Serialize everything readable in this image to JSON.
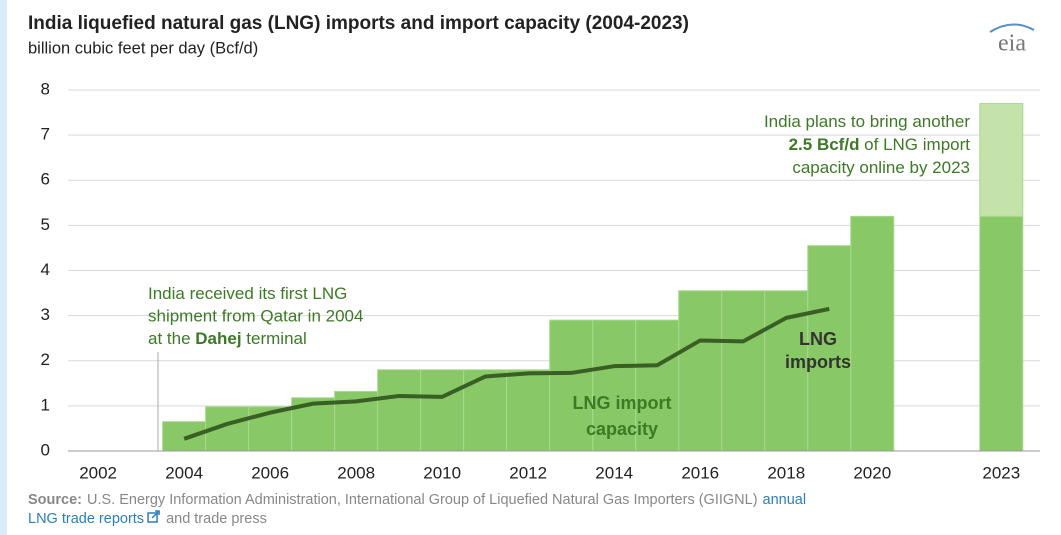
{
  "chart_data": {
    "type": "bar",
    "title": "India liquefied natural gas (LNG) imports and import capacity (2004-2023)",
    "subtitle": "billion cubic feet per day (Bcf/d)",
    "logo": "eia",
    "x": [
      2004,
      2005,
      2006,
      2007,
      2008,
      2009,
      2010,
      2011,
      2012,
      2013,
      2014,
      2015,
      2016,
      2017,
      2018,
      2019,
      2020,
      2023
    ],
    "series": [
      {
        "name": "LNG import capacity",
        "type": "bar",
        "color": "#88c866",
        "values": [
          0.65,
          0.98,
          0.98,
          1.18,
          1.32,
          1.8,
          1.8,
          1.8,
          1.8,
          2.9,
          2.9,
          2.9,
          3.55,
          3.55,
          3.55,
          4.55,
          5.2,
          5.2
        ]
      },
      {
        "name": "planned capacity",
        "type": "bar",
        "color": "#c3e3ab",
        "values": [
          null,
          null,
          null,
          null,
          null,
          null,
          null,
          null,
          null,
          null,
          null,
          null,
          null,
          null,
          null,
          null,
          null,
          2.5
        ]
      },
      {
        "name": "LNG imports",
        "type": "line",
        "color": "#3a5f24",
        "values": [
          0.27,
          0.6,
          0.85,
          1.05,
          1.1,
          1.22,
          1.2,
          1.65,
          1.72,
          1.73,
          1.88,
          1.9,
          2.45,
          2.43,
          2.95,
          3.15,
          null,
          null
        ]
      }
    ],
    "xlim": [
      2001.3,
      2023.9
    ],
    "xticks": [
      2002,
      2004,
      2006,
      2008,
      2010,
      2012,
      2014,
      2016,
      2018,
      2020,
      2023
    ],
    "ylim": [
      0,
      8
    ],
    "yticks": [
      0,
      1,
      2,
      3,
      4,
      5,
      6,
      7,
      8
    ],
    "grid": true,
    "annotations": [
      {
        "lines": [
          [
            {
              "text": "India plans to bring another",
              "bold": false
            }
          ],
          [
            {
              "text": "2.5 Bcf/d",
              "bold": true
            },
            {
              "text": " of LNG import",
              "bold": false
            }
          ],
          [
            {
              "text": "capacity online by 2023",
              "bold": false
            }
          ]
        ]
      },
      {
        "lines": [
          [
            {
              "text": "India received its first LNG",
              "bold": false
            }
          ],
          [
            {
              "text": "shipment from Qatar in 2004",
              "bold": false
            }
          ],
          [
            {
              "text": "at the ",
              "bold": false
            },
            {
              "text": "Dahej",
              "bold": true
            },
            {
              "text": " terminal",
              "bold": false
            }
          ]
        ]
      },
      {
        "lines": [
          [
            {
              "text": "LNG import",
              "bold": true
            }
          ],
          [
            {
              "text": "capacity",
              "bold": true
            }
          ]
        ]
      },
      {
        "lines": [
          [
            {
              "text": "LNG",
              "bold": true
            }
          ],
          [
            {
              "text": "imports",
              "bold": true
            }
          ]
        ]
      }
    ],
    "source": {
      "label": "Source:",
      "text": "U.S. Energy Information Administration, International Group of Liquefied Natural Gas Importers (GIIGNL)",
      "link": [
        "annual",
        "LNG trade reports"
      ],
      "after": "and trade press"
    }
  }
}
